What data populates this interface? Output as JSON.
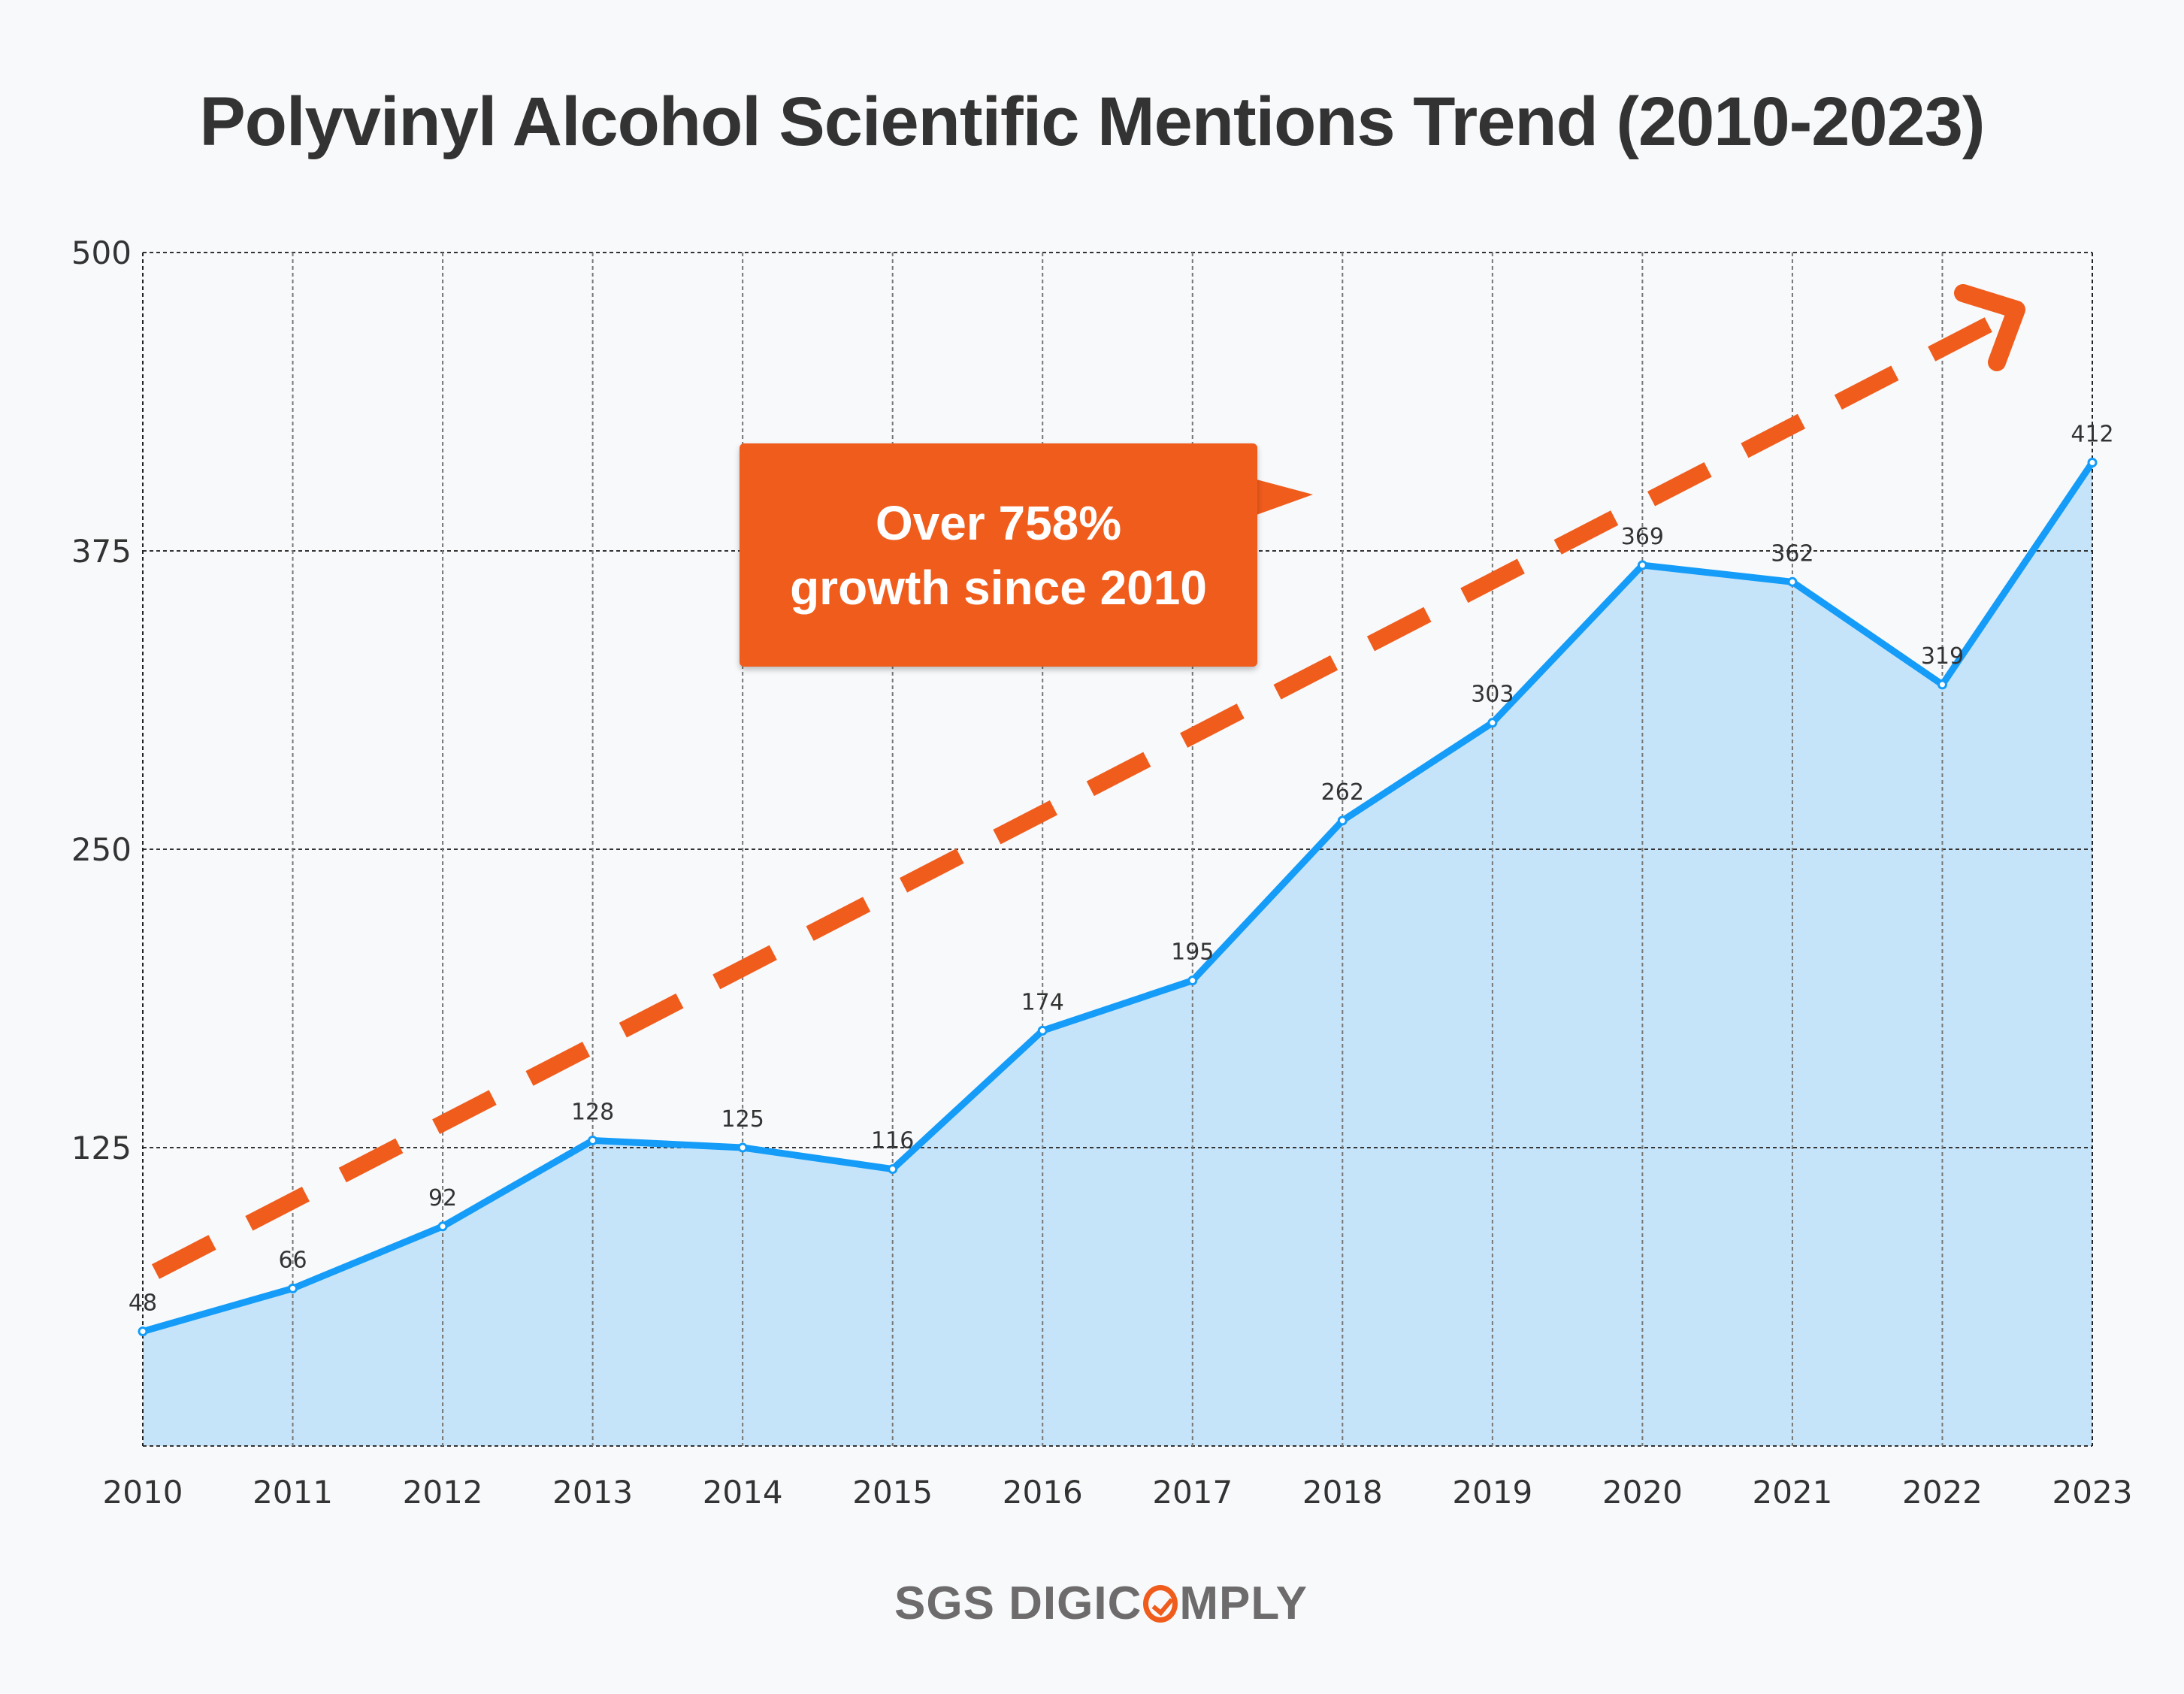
{
  "chart_data": {
    "type": "area",
    "title": "Polyvinyl Alcohol Scientific Mentions Trend (2010-2023)",
    "xlabel": "",
    "ylabel": "",
    "categories": [
      "2010",
      "2011",
      "2012",
      "2013",
      "2014",
      "2015",
      "2016",
      "2017",
      "2018",
      "2019",
      "2020",
      "2021",
      "2022",
      "2023"
    ],
    "values": [
      48,
      66,
      92,
      128,
      125,
      116,
      174,
      195,
      262,
      303,
      369,
      362,
      319,
      412
    ],
    "ylim": [
      0,
      500
    ],
    "yticks": [
      125,
      250,
      375,
      500
    ],
    "grid": true,
    "annotation": {
      "line1": "Over 758%",
      "line2": "growth since 2010"
    },
    "colors": {
      "line": "#149cf8",
      "fill": "#c6e4f9",
      "trend": "#f05c1c"
    }
  },
  "branding": {
    "prefix": "SGS DIGIC",
    "suffix": "MPLY"
  }
}
